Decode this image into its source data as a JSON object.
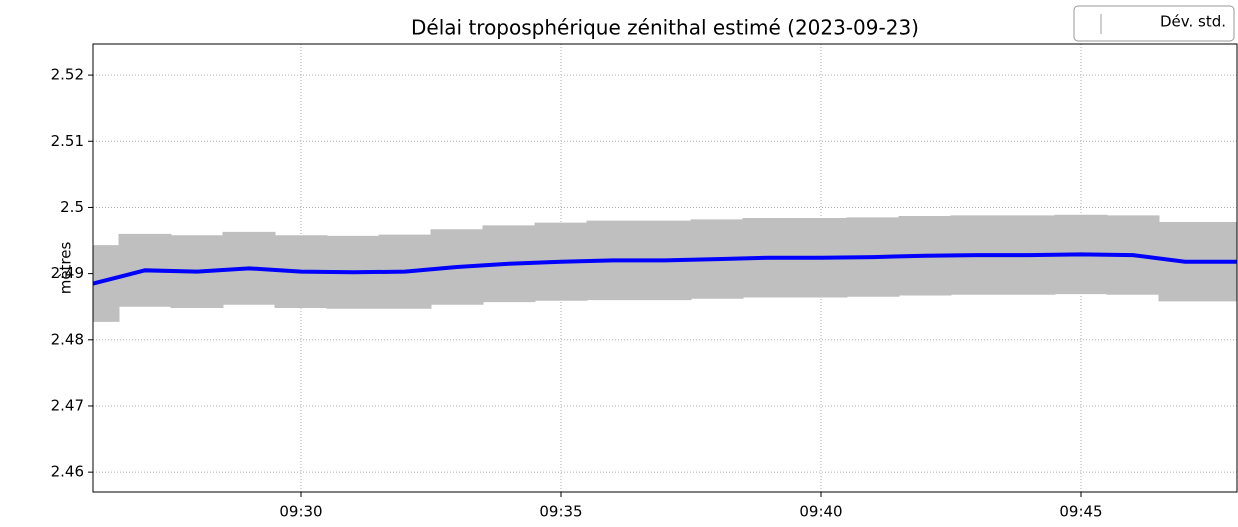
{
  "chart_data": {
    "type": "line",
    "title": "Délai troposphérique zénithal estimé (2023-09-23)",
    "y_label": "mètres",
    "x": [
      "09:26",
      "09:27",
      "09:28",
      "09:29",
      "09:30",
      "09:31",
      "09:32",
      "09:33",
      "09:34",
      "09:35",
      "09:36",
      "09:37",
      "09:38",
      "09:39",
      "09:40",
      "09:41",
      "09:42",
      "09:43",
      "09:44",
      "09:45",
      "09:46",
      "09:47",
      "09:48"
    ],
    "series": [
      {
        "color": "#0000ff",
        "values": [
          2.4885,
          2.4905,
          2.4903,
          2.4908,
          2.4903,
          2.4902,
          2.4903,
          2.491,
          2.4915,
          2.4918,
          2.492,
          2.492,
          2.4922,
          2.4924,
          2.4924,
          2.4925,
          2.4927,
          2.4928,
          2.4928,
          2.4929,
          2.4928,
          2.4918,
          2.4918
        ],
        "error_name": "Dév. std.",
        "error_color": "#bfbfbf",
        "errors": [
          0.0058,
          0.0055,
          0.0055,
          0.0055,
          0.0055,
          0.0055,
          0.0056,
          0.0057,
          0.0058,
          0.0059,
          0.006,
          0.006,
          0.006,
          0.006,
          0.006,
          0.006,
          0.006,
          0.006,
          0.006,
          0.006,
          0.006,
          0.006,
          0.006
        ]
      }
    ],
    "xlim": [
      "09:26",
      "09:48"
    ],
    "xticks": [
      "09:30",
      "09:35",
      "09:40",
      "09:45"
    ],
    "ylim": [
      2.457,
      2.5247
    ],
    "yticks": [
      2.46,
      2.47,
      2.48,
      2.49,
      2.5,
      {
        "value": 2.51,
        "label": "2.51"
      },
      2.52
    ],
    "grid": true,
    "legend": "upper right"
  }
}
